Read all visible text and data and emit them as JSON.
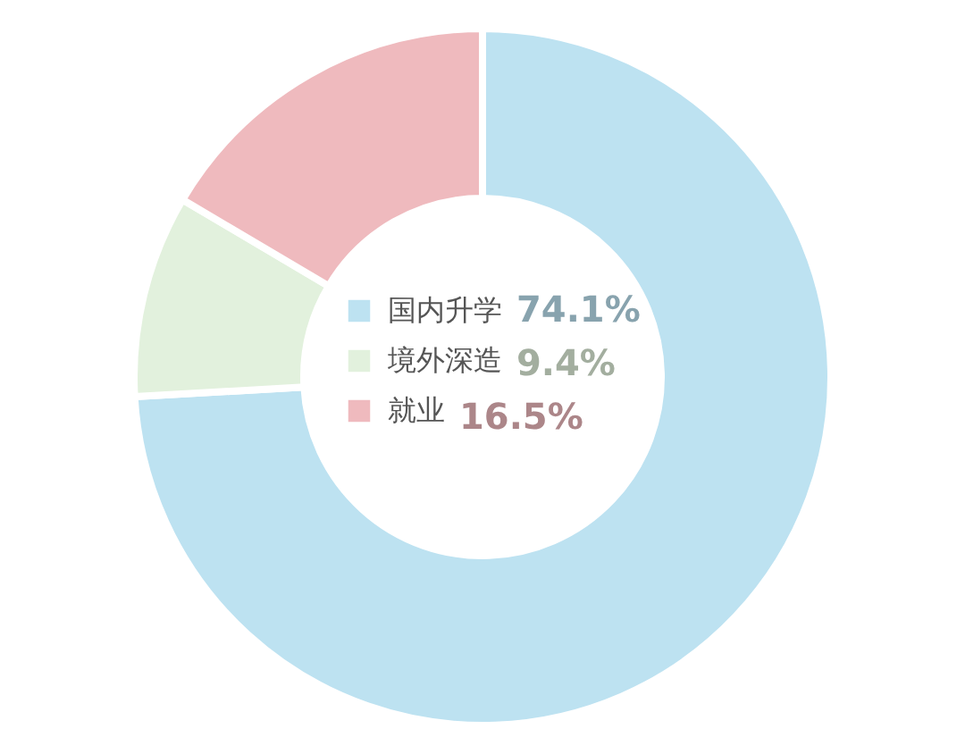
{
  "chart_data": {
    "type": "donut",
    "categories": [
      "国内升学",
      "境外深造",
      "就业"
    ],
    "values": [
      74.1,
      9.4,
      16.5
    ],
    "value_labels": [
      "74.1%",
      "9.4%",
      "16.5%"
    ],
    "colors": [
      "#bde2f1",
      "#e2f1dd",
      "#efbabe"
    ],
    "legend": "center"
  }
}
